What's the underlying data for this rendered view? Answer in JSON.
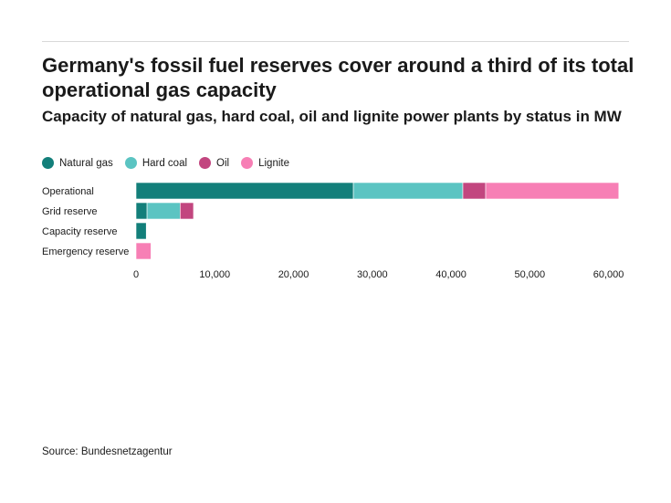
{
  "title": "Germany's fossil fuel reserves cover around a third of its total operational gas capacity",
  "subtitle": "Capacity of natural gas, hard coal, oil and lignite power plants by status in MW",
  "source": "Source: Bundesnetzagentur",
  "chart_data": {
    "type": "bar",
    "orientation": "horizontal",
    "stacked": true,
    "categories": [
      "Operational",
      "Grid reserve",
      "Capacity reserve",
      "Emergency reserve"
    ],
    "series": [
      {
        "name": "Natural gas",
        "color": "#137f7a",
        "values": [
          27600,
          1400,
          1300,
          0
        ]
      },
      {
        "name": "Hard coal",
        "color": "#5bc4c2",
        "values": [
          13900,
          4200,
          0,
          0
        ]
      },
      {
        "name": "Oil",
        "color": "#c2467f",
        "values": [
          2900,
          1700,
          0,
          0
        ]
      },
      {
        "name": "Lignite",
        "color": "#f77fb5",
        "values": [
          16900,
          0,
          0,
          1900
        ]
      }
    ],
    "xlim": [
      0,
      62600
    ],
    "xticks": [
      0,
      10000,
      20000,
      30000,
      40000,
      50000,
      60000
    ],
    "xtick_labels": [
      "0",
      "10,000",
      "20,000",
      "30,000",
      "40,000",
      "50,000",
      "60,000"
    ],
    "legend_position": "top-left",
    "grid": false
  }
}
